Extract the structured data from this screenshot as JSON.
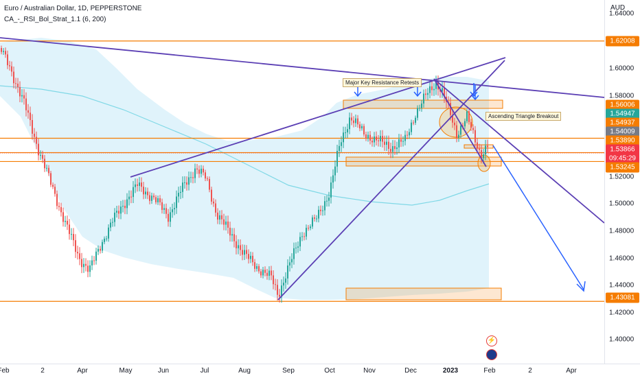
{
  "legend": {
    "symbol_title": "Euro / Australian Dollar, 1D, PEPPERSTONE",
    "indicator": "CA_-_RSI_Bol_Strat_1.1 (6, 200)"
  },
  "currency": "AUD",
  "price_axis": {
    "ticks": [
      "1.64000",
      "1.60000",
      "1.58000",
      "1.52000",
      "1.50000",
      "1.48000",
      "1.46000",
      "1.44000",
      "1.42000",
      "1.40000"
    ]
  },
  "price_tags": [
    {
      "text": "1.62008",
      "color": "#f57c00"
    },
    {
      "text": "1.56006",
      "color": "#f57c00"
    },
    {
      "text": "1.54947",
      "color": "#26a69a"
    },
    {
      "text": "1.54937",
      "color": "#f57c00"
    },
    {
      "text": "1.54009",
      "color": "#787b86"
    },
    {
      "text": "1.53890",
      "color": "#f57c00"
    },
    {
      "text": "1.53866",
      "sub": "09:45:29",
      "color": "#f23645"
    },
    {
      "text": "1.53245",
      "color": "#f57c00"
    },
    {
      "text": "1.43081",
      "color": "#f57c00"
    }
  ],
  "time_axis": [
    {
      "label": "Feb",
      "bold": false
    },
    {
      "label": "2",
      "bold": false
    },
    {
      "label": "Apr",
      "bold": false
    },
    {
      "label": "May",
      "bold": false
    },
    {
      "label": "Jun",
      "bold": false
    },
    {
      "label": "Jul",
      "bold": false
    },
    {
      "label": "Aug",
      "bold": false
    },
    {
      "label": "Sep",
      "bold": false
    },
    {
      "label": "Oct",
      "bold": false
    },
    {
      "label": "Nov",
      "bold": false
    },
    {
      "label": "Dec",
      "bold": false
    },
    {
      "label": "2023",
      "bold": true
    },
    {
      "label": "Feb",
      "bold": false
    },
    {
      "label": "2",
      "bold": false
    },
    {
      "label": "Apr",
      "bold": false
    }
  ],
  "annotations": {
    "resistance": "Major Key Resistance Retests",
    "triangle": "Ascending Triangle Breakout"
  },
  "colors": {
    "up": "#26a69a",
    "down": "#ef5350",
    "trend": "#5b3fb4",
    "projection": "#2962ff",
    "level": "#f57c00",
    "band_fill": "#d8f0fa",
    "mid_line": "#7fd8e6"
  }
}
